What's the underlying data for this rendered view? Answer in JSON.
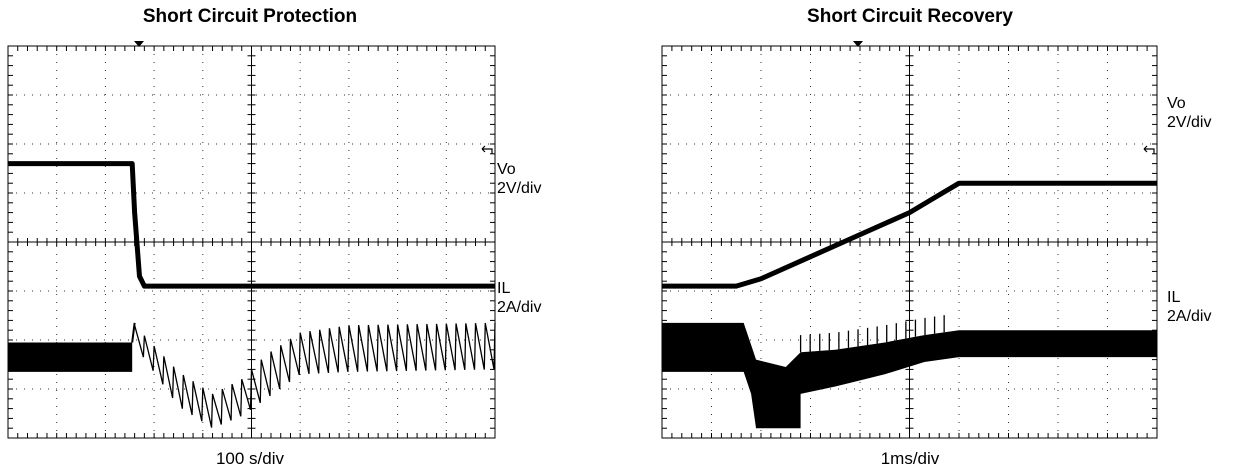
{
  "chart_data": [
    {
      "type": "line",
      "title": "Short Circuit Protection",
      "xlabel": "100  s/div",
      "divisions": {
        "x": 10,
        "y": 8
      },
      "grid": true,
      "series": [
        {
          "name": "Vo",
          "label": "Vo",
          "scale": "2V/div",
          "points": [
            [
              0,
              5.6
            ],
            [
              2.55,
              5.6
            ],
            [
              2.6,
              4.6
            ],
            [
              2.7,
              3.3
            ],
            [
              2.8,
              3.1
            ],
            [
              10,
              3.1
            ]
          ]
        },
        {
          "name": "IL",
          "label": "IL",
          "scale": "2A/div",
          "band": [
            [
              0,
              1.35,
              1.95
            ],
            [
              2.55,
              1.35,
              1.95
            ]
          ],
          "spike": [
            [
              2.55,
              1.95
            ],
            [
              2.6,
              2.35
            ]
          ],
          "ripple": {
            "x_start": 2.6,
            "x_end": 10,
            "teeth": 37,
            "top": [
              [
                2.6,
                2.3
              ],
              [
                3.5,
                1.35
              ],
              [
                4.2,
                0.9
              ],
              [
                4.8,
                1.2
              ],
              [
                5.3,
                1.7
              ],
              [
                6.0,
                2.15
              ],
              [
                7.0,
                2.3
              ],
              [
                10,
                2.35
              ]
            ],
            "bottom": [
              [
                2.6,
                1.9
              ],
              [
                3.5,
                0.65
              ],
              [
                4.2,
                0.2
              ],
              [
                4.8,
                0.45
              ],
              [
                5.3,
                0.8
              ],
              [
                6.0,
                1.3
              ],
              [
                7.0,
                1.35
              ],
              [
                10,
                1.4
              ]
            ]
          }
        }
      ]
    },
    {
      "type": "line",
      "title": "Short Circuit Recovery",
      "xlabel": "1ms/div",
      "divisions": {
        "x": 10,
        "y": 8
      },
      "grid": true,
      "series": [
        {
          "name": "Vo",
          "label": "Vo",
          "scale": "2V/div",
          "points": [
            [
              0,
              3.1
            ],
            [
              1.5,
              3.1
            ],
            [
              2.0,
              3.25
            ],
            [
              3.0,
              3.7
            ],
            [
              4.0,
              4.15
            ],
            [
              5.0,
              4.6
            ],
            [
              5.5,
              4.9
            ],
            [
              6.0,
              5.2
            ],
            [
              10,
              5.2
            ]
          ]
        },
        {
          "name": "IL",
          "label": "IL",
          "scale": "2A/div",
          "band": [
            [
              0,
              1.35,
              2.35
            ],
            [
              1.65,
              1.35,
              2.35
            ],
            [
              1.8,
              0.9,
              1.9
            ],
            [
              1.9,
              0.2,
              1.6
            ],
            [
              2.5,
              0.2,
              1.45
            ],
            [
              2.8,
              0.2,
              1.75
            ],
            [
              2.8,
              0.9,
              1.75
            ],
            [
              3.5,
              1.05,
              1.8
            ],
            [
              4.5,
              1.3,
              1.95
            ],
            [
              5.3,
              1.55,
              2.1
            ],
            [
              6.0,
              1.65,
              2.2
            ],
            [
              10,
              1.65,
              2.2
            ]
          ],
          "spikes": {
            "x_start": 2.8,
            "x_end": 5.7,
            "count": 16,
            "height": 0.35
          }
        }
      ]
    }
  ]
}
